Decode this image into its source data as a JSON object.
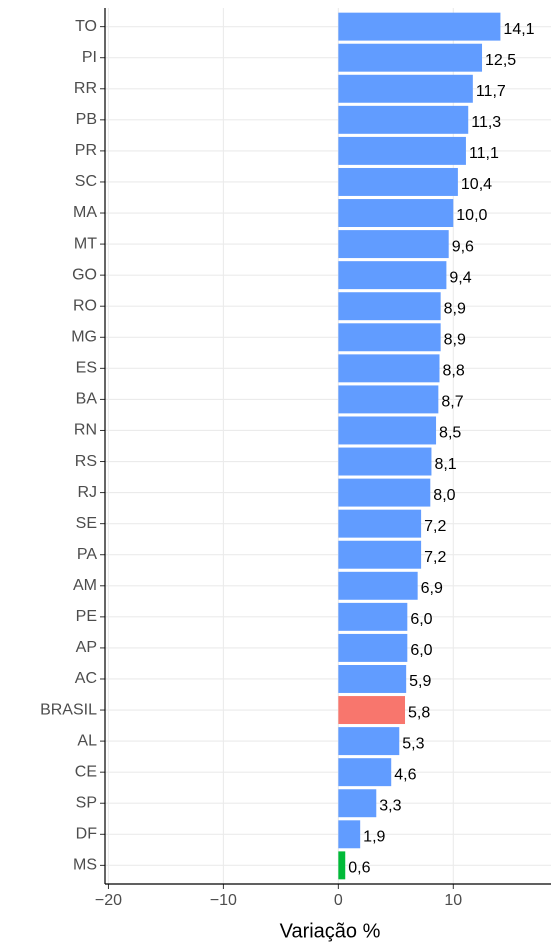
{
  "chart_data": {
    "type": "barh",
    "xlabel": "Variação %",
    "categories": [
      "TO",
      "PI",
      "RR",
      "PB",
      "PR",
      "SC",
      "MA",
      "MT",
      "GO",
      "RO",
      "MG",
      "ES",
      "BA",
      "RN",
      "RS",
      "RJ",
      "SE",
      "PA",
      "AM",
      "PE",
      "AP",
      "AC",
      "BRASIL",
      "AL",
      "CE",
      "SP",
      "DF",
      "MS"
    ],
    "values": [
      14.1,
      12.5,
      11.7,
      11.3,
      11.1,
      10.4,
      10.0,
      9.6,
      9.4,
      8.9,
      8.9,
      8.8,
      8.7,
      8.5,
      8.1,
      8.0,
      7.2,
      7.2,
      6.9,
      6.0,
      6.0,
      5.9,
      5.8,
      5.3,
      4.6,
      3.3,
      1.9,
      0.6
    ],
    "value_labels": [
      "14,1",
      "12,5",
      "11,7",
      "11,3",
      "11,1",
      "10,4",
      "10,0",
      "9,6",
      "9,4",
      "8,9",
      "8,9",
      "8,8",
      "8,7",
      "8,5",
      "8,1",
      "8,0",
      "7,2",
      "7,2",
      "6,9",
      "6,0",
      "6,0",
      "5,9",
      "5,8",
      "5,3",
      "4,6",
      "3,3",
      "1,9",
      "0,6"
    ],
    "colors": [
      "#619CFF",
      "#619CFF",
      "#619CFF",
      "#619CFF",
      "#619CFF",
      "#619CFF",
      "#619CFF",
      "#619CFF",
      "#619CFF",
      "#619CFF",
      "#619CFF",
      "#619CFF",
      "#619CFF",
      "#619CFF",
      "#619CFF",
      "#619CFF",
      "#619CFF",
      "#619CFF",
      "#619CFF",
      "#619CFF",
      "#619CFF",
      "#619CFF",
      "#F8766D",
      "#619CFF",
      "#619CFF",
      "#619CFF",
      "#619CFF",
      "#00BA38"
    ],
    "xlim": [
      -20.3,
      18.5
    ],
    "xticks": [
      {
        "value": -20,
        "label": "−20"
      },
      {
        "value": -10,
        "label": "−10"
      },
      0,
      10
    ],
    "grid": true
  }
}
